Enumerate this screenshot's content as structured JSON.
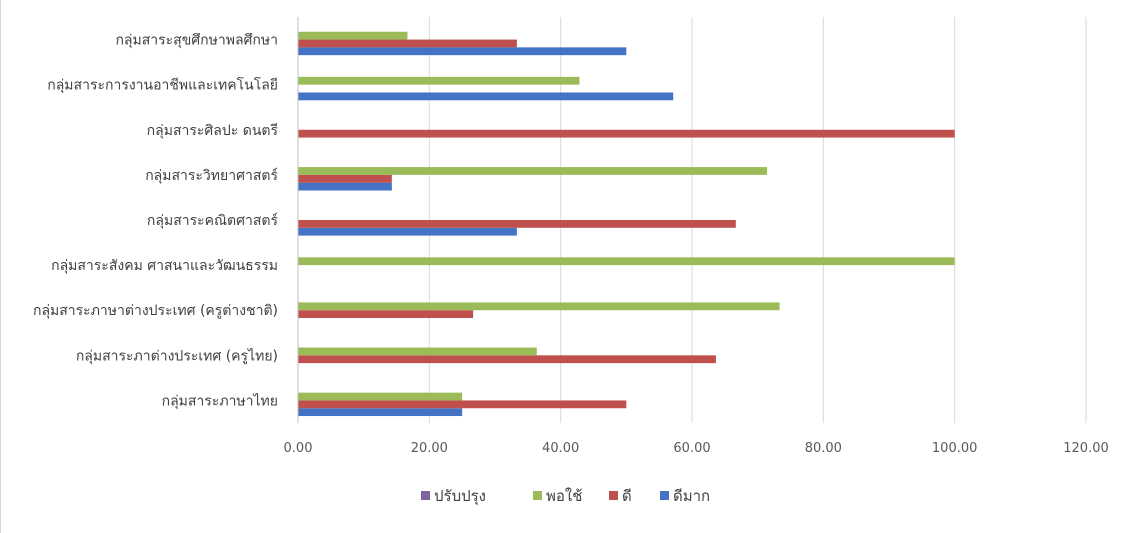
{
  "chart_data": {
    "type": "bar",
    "orientation": "horizontal",
    "categories": [
      "กลุ่มสาระภาษาไทย",
      "กลุ่มสาระภาต่างประเทศ (ครูไทย)",
      "กลุ่มสาระภาษาต่างประเทศ (ครูต่างชาติ)",
      "กลุ่มสาระสังคม ศาสนาและวัฒนธรรม",
      "กลุ่มสาระคณิตศาสตร์",
      "กลุ่มสาระวิทยาศาสตร์",
      "กลุ่มสาระศิลปะ ดนตรี",
      "กลุ่มสาระการงานอาชีพและเทคโนโลยี",
      "กลุ่มสาระสุขศึกษาพลศึกษา"
    ],
    "series": [
      {
        "name": "ดีมาก",
        "color": "#4472C4",
        "values": [
          25,
          0,
          0,
          0,
          33.33,
          14.29,
          0,
          57.14,
          50
        ]
      },
      {
        "name": "ดี",
        "color": "#C0504D",
        "values": [
          50,
          63.64,
          26.67,
          0,
          66.67,
          14.29,
          100,
          0,
          33.33
        ]
      },
      {
        "name": "พอใช้",
        "color": "#9BBB59",
        "values": [
          25,
          36.36,
          73.33,
          100,
          0,
          71.43,
          0,
          42.86,
          16.67
        ]
      },
      {
        "name": "ปรับปรุง",
        "color": "#8064A2",
        "values": [
          0,
          0,
          0,
          0,
          0,
          0,
          0,
          0,
          0
        ]
      }
    ],
    "legend_order": [
      "ปรับปรุง",
      "พอใช้",
      "ดี",
      "ดีมาก"
    ],
    "x_ticks": [
      "0.00",
      "20.00",
      "40.00",
      "60.00",
      "80.00",
      "100.00",
      "120.00"
    ],
    "xlim": [
      0,
      120
    ],
    "grid": true,
    "legend_position": "bottom",
    "title": "",
    "xlabel": "",
    "ylabel": ""
  }
}
